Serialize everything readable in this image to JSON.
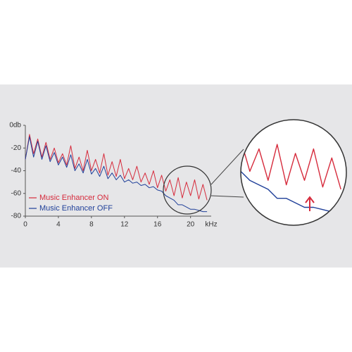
{
  "chart_data": {
    "type": "line",
    "x_label": "kHz",
    "x": [
      0,
      0.5,
      1,
      1.5,
      2,
      2.5,
      3,
      3.5,
      4,
      4.5,
      5,
      5.5,
      6,
      6.5,
      7,
      7.5,
      8,
      8.5,
      9,
      9.5,
      10,
      10.5,
      11,
      11.5,
      12,
      12.5,
      13,
      13.5,
      14,
      14.5,
      15,
      15.5,
      16,
      16.5,
      17,
      17.5,
      18,
      18.5,
      19,
      19.5,
      20,
      20.5,
      21,
      21.5,
      22
    ],
    "series": [
      {
        "name": "Music Enhancer ON",
        "color": "#d62b3c",
        "values": [
          -30,
          -8,
          -25,
          -12,
          -28,
          -15,
          -30,
          -20,
          -33,
          -25,
          -35,
          -18,
          -38,
          -28,
          -40,
          -22,
          -40,
          -30,
          -42,
          -25,
          -44,
          -32,
          -45,
          -30,
          -47,
          -38,
          -48,
          -36,
          -50,
          -42,
          -52,
          -40,
          -55,
          -44,
          -58,
          -48,
          -62,
          -46,
          -64,
          -50,
          -62,
          -48,
          -65,
          -52,
          -66
        ]
      },
      {
        "name": "Music Enhancer OFF",
        "color": "#1f3f99",
        "values": [
          -30,
          -10,
          -28,
          -14,
          -30,
          -18,
          -32,
          -24,
          -35,
          -28,
          -37,
          -26,
          -40,
          -34,
          -42,
          -30,
          -43,
          -38,
          -45,
          -36,
          -47,
          -42,
          -48,
          -44,
          -50,
          -48,
          -51,
          -50,
          -53,
          -52,
          -55,
          -54,
          -57,
          -58,
          -62,
          -64,
          -66,
          -70,
          -70,
          -72,
          -74,
          -74,
          -75,
          -76,
          -76
        ]
      }
    ],
    "xlim": [
      0,
      22.5
    ],
    "xticks": [
      0,
      4,
      8,
      12,
      16,
      20
    ],
    "ylim": [
      -80,
      0
    ],
    "yticks": [
      {
        "value": 0,
        "label": "0db"
      },
      -20,
      -40,
      -60,
      -80
    ]
  }
}
